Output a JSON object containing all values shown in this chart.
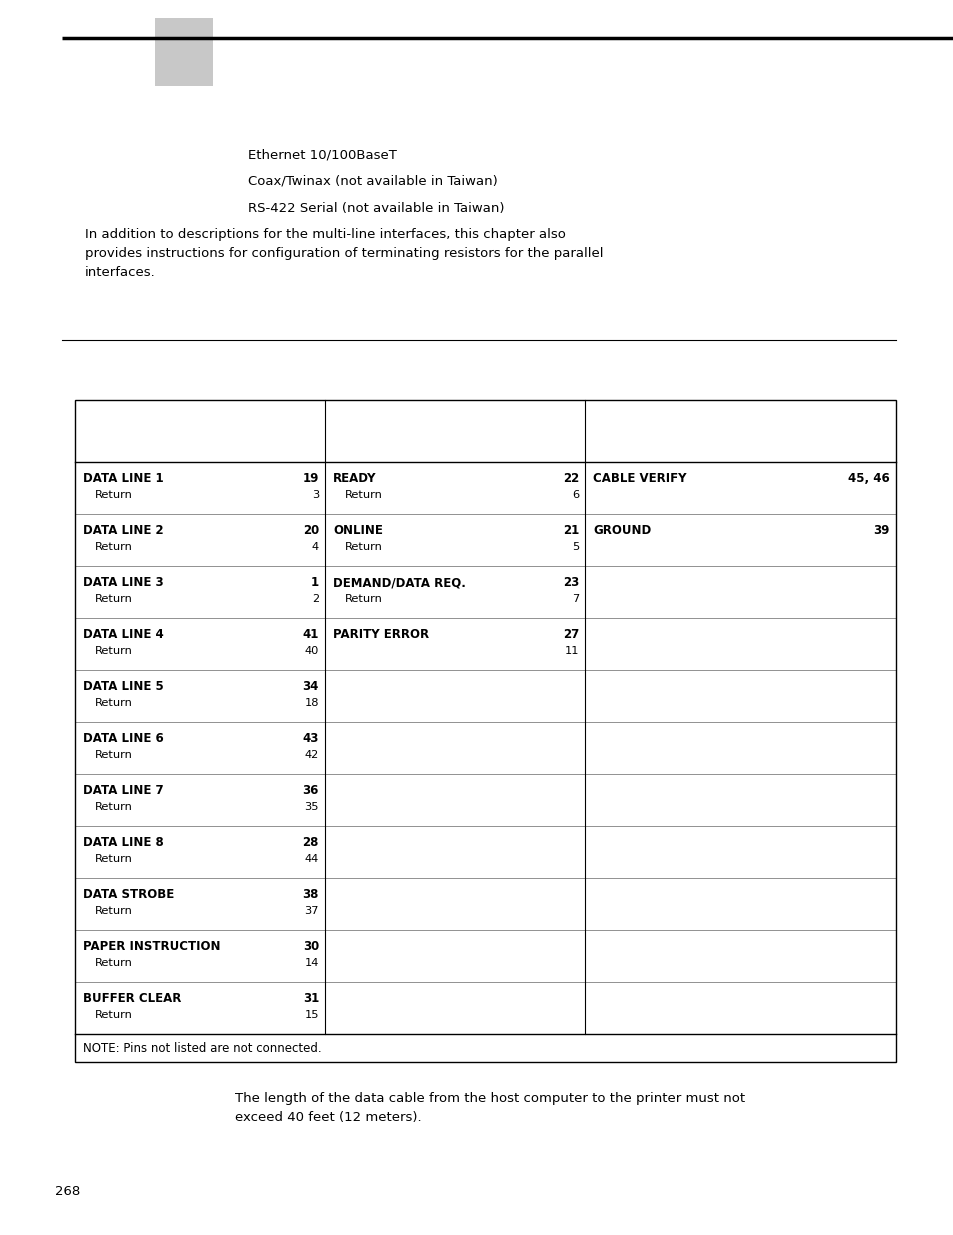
{
  "bg_color": "#ffffff",
  "bullet_items": [
    "Ethernet 10/100BaseT",
    "Coax/Twinax (not available in Taiwan)",
    "RS-422 Serial (not available in Taiwan)"
  ],
  "paragraph_text": "In addition to descriptions for the multi-line interfaces, this chapter also\nprovides instructions for configuration of terminating resistors for the parallel\ninterfaces.",
  "table_col1_groups": [
    [
      [
        "DATA LINE 1",
        "19"
      ],
      [
        "Return",
        "3"
      ]
    ],
    [
      [
        "DATA LINE 2",
        "20"
      ],
      [
        "Return",
        "4"
      ]
    ],
    [
      [
        "DATA LINE 3",
        "1"
      ],
      [
        "Return",
        "2"
      ]
    ],
    [
      [
        "DATA LINE 4",
        "41"
      ],
      [
        "Return",
        "40"
      ]
    ],
    [
      [
        "DATA LINE 5",
        "34"
      ],
      [
        "Return",
        "18"
      ]
    ],
    [
      [
        "DATA LINE 6",
        "43"
      ],
      [
        "Return",
        "42"
      ]
    ],
    [
      [
        "DATA LINE 7",
        "36"
      ],
      [
        "Return",
        "35"
      ]
    ],
    [
      [
        "DATA LINE 8",
        "28"
      ],
      [
        "Return",
        "44"
      ]
    ],
    [
      [
        "DATA STROBE",
        "38"
      ],
      [
        "Return",
        "37"
      ]
    ],
    [
      [
        "PAPER INSTRUCTION",
        "30"
      ],
      [
        "Return",
        "14"
      ]
    ],
    [
      [
        "BUFFER CLEAR",
        "31"
      ],
      [
        "Return",
        "15"
      ]
    ]
  ],
  "table_col2_groups": [
    [
      [
        "READY",
        "22"
      ],
      [
        "Return",
        "6"
      ]
    ],
    [
      [
        "ONLINE",
        "21"
      ],
      [
        "Return",
        "5"
      ]
    ],
    [
      [
        "DEMAND/DATA REQ.",
        "23"
      ],
      [
        "Return",
        "7"
      ]
    ],
    [
      [
        "PARITY ERROR",
        "27"
      ],
      [
        "",
        "11"
      ]
    ],
    [
      [
        "",
        ""
      ],
      [
        "",
        ""
      ]
    ],
    [
      [
        "",
        ""
      ],
      [
        "",
        ""
      ]
    ],
    [
      [
        "",
        ""
      ],
      [
        "",
        ""
      ]
    ],
    [
      [
        "",
        ""
      ],
      [
        "",
        ""
      ]
    ],
    [
      [
        "",
        ""
      ],
      [
        "",
        ""
      ]
    ],
    [
      [
        "",
        ""
      ],
      [
        "",
        ""
      ]
    ],
    [
      [
        "",
        ""
      ],
      [
        "",
        ""
      ]
    ]
  ],
  "table_col3_groups": [
    [
      [
        "CABLE VERIFY",
        "45, 46"
      ],
      [
        "",
        ""
      ]
    ],
    [
      [
        "GROUND",
        "39"
      ],
      [
        "",
        ""
      ]
    ],
    [
      [
        "",
        ""
      ],
      [
        "",
        ""
      ]
    ],
    [
      [
        "",
        ""
      ],
      [
        "",
        ""
      ]
    ],
    [
      [
        "",
        ""
      ],
      [
        "",
        ""
      ]
    ],
    [
      [
        "",
        ""
      ],
      [
        "",
        ""
      ]
    ],
    [
      [
        "",
        ""
      ],
      [
        "",
        ""
      ]
    ],
    [
      [
        "",
        ""
      ],
      [
        "",
        ""
      ]
    ],
    [
      [
        "",
        ""
      ],
      [
        "",
        ""
      ]
    ],
    [
      [
        "",
        ""
      ],
      [
        "",
        ""
      ]
    ],
    [
      [
        "",
        ""
      ],
      [
        "",
        ""
      ]
    ]
  ],
  "note": "NOTE: Pins not listed are not connected.",
  "footer_text": "The length of the data cable from the host computer to the printer must not\nexceed 40 feet (12 meters).",
  "page_number": "268"
}
